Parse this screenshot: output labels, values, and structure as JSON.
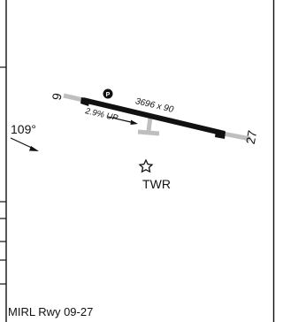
{
  "diagram": {
    "runway_end_west": "9",
    "runway_end_east": "27",
    "runway_dimensions": "3696 x 90",
    "runway_gradient": "2.9% UP",
    "approach_bearing": "109°",
    "tower_label": "TWR",
    "parking_label": "P",
    "lighting_note": "MIRL Rwy 09-27",
    "colors": {
      "ink": "#111111",
      "pavement": "#bfbfbf",
      "paper": "#ffffff"
    },
    "icons": [
      "tower-star-icon",
      "parking-icon",
      "gradient-arrow-icon",
      "approach-arrow-icon"
    ]
  }
}
